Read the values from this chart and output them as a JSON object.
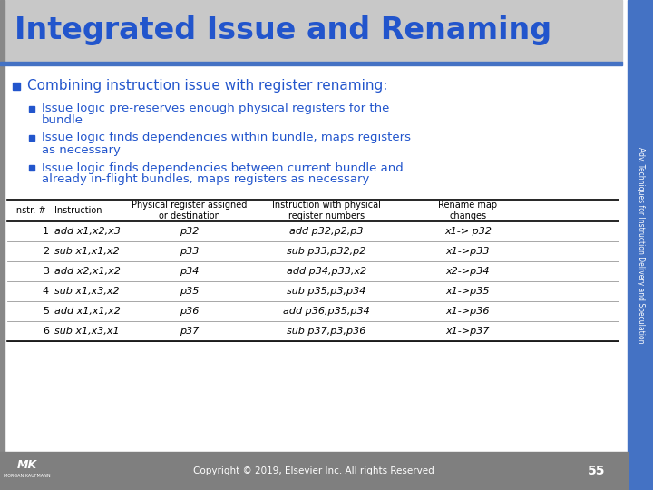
{
  "title": "Integrated Issue and Renaming",
  "title_color": "#2255CC",
  "bg_color": "#FFFFFF",
  "sidebar_color": "#4472C4",
  "sidebar_text": "Adv. Techniques for Instruction Delivery and Speculation",
  "header_bar_color": "#4472C4",
  "header_bg_color": "#C8C8C8",
  "left_bar_color": "#888888",
  "bullet_main": "Combining instruction issue with register renaming:",
  "bullet_sub_1_line1": "Issue logic pre-reserves enough physical registers for the",
  "bullet_sub_1_line2": "bundle",
  "bullet_sub_2_line1": "Issue logic finds dependencies within bundle, maps registers",
  "bullet_sub_2_line2": "as necessary",
  "bullet_sub_3_line1": "Issue logic finds dependencies between current bundle and",
  "bullet_sub_3_line2": "already in-flight bundles, maps registers as necessary",
  "table_headers": [
    "Instr. #",
    "Instruction",
    "Physical register assigned\nor destination",
    "Instruction with physical\nregister numbers",
    "Rename map\nchanges"
  ],
  "table_rows": [
    [
      "1",
      "add x1,x2,x3",
      "p32",
      "add p32,p2,p3",
      "x1-> p32"
    ],
    [
      "2",
      "sub x1,x1,x2",
      "p33",
      "sub p33,p32,p2",
      "x1->p33"
    ],
    [
      "3",
      "add x2,x1,x2",
      "p34",
      "add p34,p33,x2",
      "x2->p34"
    ],
    [
      "4",
      "sub x1,x3,x2",
      "p35",
      "sub p35,p3,p34",
      "x1->p35"
    ],
    [
      "5",
      "add x1,x1,x2",
      "p36",
      "add p36,p35,p34",
      "x1->p36"
    ],
    [
      "6",
      "sub x1,x3,x1",
      "p37",
      "sub p37,p3,p36",
      "x1->p37"
    ]
  ],
  "footer_bg": "#7F7F7F",
  "footer_text": "Copyright © 2019, Elsevier Inc. All rights Reserved",
  "footer_page": "55",
  "blue_text_color": "#2255CC",
  "bullet_color": "#2255CC",
  "table_text_color": "#000000",
  "table_header_color": "#000000"
}
